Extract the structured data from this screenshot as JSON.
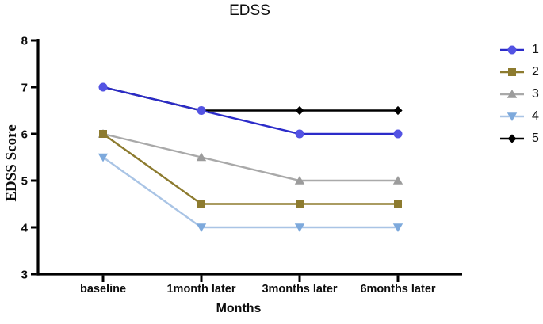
{
  "chart_data": {
    "type": "line",
    "title": "EDSS",
    "xlabel": "Months",
    "ylabel": "EDSS Score",
    "categories": [
      "baseline",
      "1month later",
      "3months later",
      "6months later"
    ],
    "ylim": [
      3,
      8
    ],
    "yticks": [
      3,
      4,
      5,
      6,
      7,
      8
    ],
    "grid": false,
    "legend_position": "right",
    "axis_color": "#000000",
    "series": [
      {
        "name": "1",
        "marker": "circle",
        "line_color": "#2b2bc9",
        "marker_color": "#5353e3",
        "values": [
          7,
          6.5,
          6,
          6
        ]
      },
      {
        "name": "2",
        "marker": "square",
        "line_color": "#8d7b2f",
        "marker_color": "#8d7b2f",
        "values": [
          6,
          4.5,
          4.5,
          4.5
        ]
      },
      {
        "name": "3",
        "marker": "triangle-up",
        "line_color": "#a9a9a9",
        "marker_color": "#9c9c9c",
        "values": [
          6,
          5.5,
          5,
          5
        ]
      },
      {
        "name": "4",
        "marker": "triangle-down",
        "line_color": "#a9c4e5",
        "marker_color": "#7da9dc",
        "values": [
          5.5,
          4,
          4,
          4
        ]
      },
      {
        "name": "5",
        "marker": "diamond",
        "line_color": "#000000",
        "marker_color": "#000000",
        "values": [
          7,
          6.5,
          6.5,
          6.5
        ]
      }
    ],
    "draw_order": [
      4,
      2,
      3,
      1,
      0
    ]
  }
}
